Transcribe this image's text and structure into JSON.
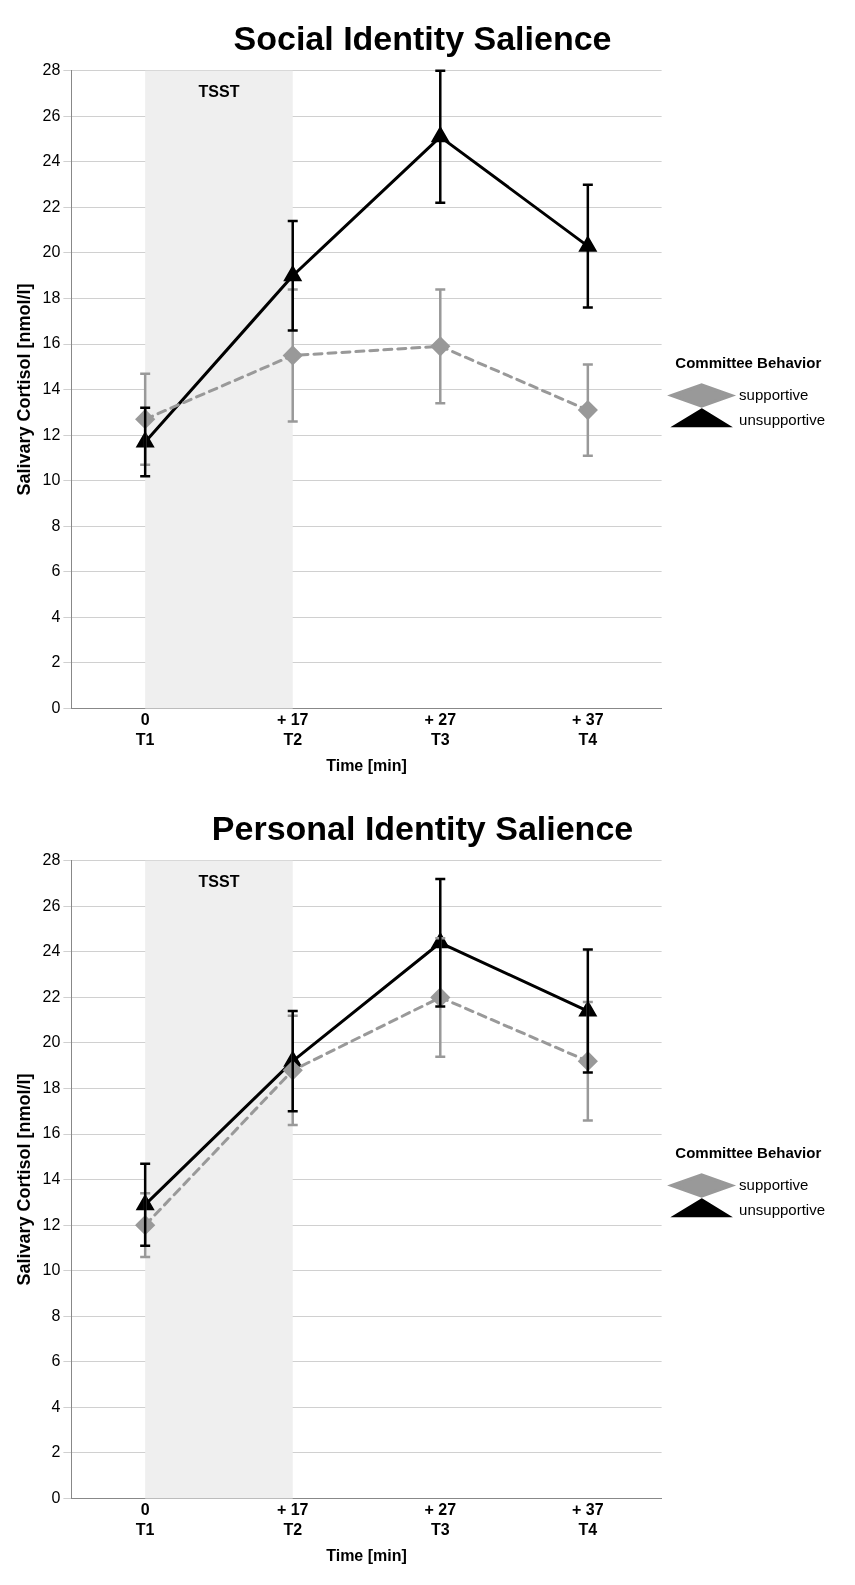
{
  "chart_data": [
    {
      "type": "line",
      "title": "Social Identity Salience",
      "xlabel": "Time [min]",
      "ylabel": "Salivary Cortisol [nmol/l]",
      "legend_title": "Committee Behavior",
      "categories": [
        "0\nT1",
        "+ 17\nT2",
        "+ 27\nT3",
        "+ 37\nT4"
      ],
      "series": [
        {
          "name": "supportive",
          "color": "#999999",
          "marker": "diamond",
          "line_style": "dashed",
          "values": [
            12.7,
            15.5,
            15.9,
            13.1
          ],
          "errors": [
            2.0,
            2.9,
            2.5,
            2.0
          ]
        },
        {
          "name": "unsupportive",
          "color": "#000000",
          "marker": "triangle",
          "line_style": "solid",
          "values": [
            11.7,
            19.0,
            25.1,
            20.3
          ],
          "errors": [
            1.5,
            2.4,
            2.9,
            2.7
          ]
        }
      ],
      "ylim": [
        0,
        28
      ],
      "yticks": [
        0,
        2,
        4,
        6,
        8,
        10,
        12,
        14,
        16,
        18,
        20,
        22,
        24,
        26,
        28
      ],
      "grid": "y",
      "legend": "right",
      "bands": [
        {
          "axis": "x",
          "from": "0\nT1",
          "to": "+ 17\nT2",
          "label": "TSST",
          "color": "#efefef"
        }
      ]
    },
    {
      "type": "line",
      "title": "Personal Identity Salience",
      "xlabel": "Time [min]",
      "ylabel": "Salivary Cortisol [nmol/l]",
      "legend_title": "Committee Behavior",
      "categories": [
        "0\nT1",
        "+ 17\nT2",
        "+ 27\nT3",
        "+ 37\nT4"
      ],
      "series": [
        {
          "name": "supportive",
          "color": "#999999",
          "marker": "diamond",
          "line_style": "dashed",
          "values": [
            12.0,
            18.8,
            22.0,
            19.2
          ],
          "errors": [
            1.4,
            2.4,
            2.6,
            2.6
          ]
        },
        {
          "name": "unsupportive",
          "color": "#000000",
          "marker": "triangle",
          "line_style": "solid",
          "values": [
            12.9,
            19.2,
            24.4,
            21.4
          ],
          "errors": [
            1.8,
            2.2,
            2.8,
            2.7
          ]
        }
      ],
      "ylim": [
        0,
        28
      ],
      "yticks": [
        0,
        2,
        4,
        6,
        8,
        10,
        12,
        14,
        16,
        18,
        20,
        22,
        24,
        26,
        28
      ],
      "grid": "y",
      "legend": "right",
      "bands": [
        {
          "axis": "x",
          "from": "0\nT1",
          "to": "+ 17\nT2",
          "label": "TSST",
          "color": "#efefef"
        }
      ]
    }
  ]
}
